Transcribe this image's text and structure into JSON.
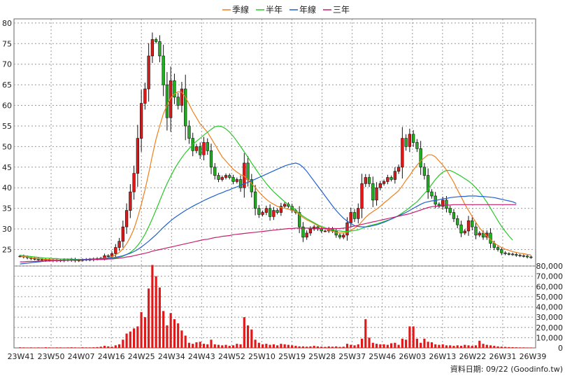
{
  "legend": [
    {
      "label": "季線",
      "color": "#f07f1c"
    },
    {
      "label": "半年",
      "color": "#28c828"
    },
    {
      "label": "年線",
      "color": "#2060d0"
    },
    {
      "label": "三年",
      "color": "#c81e6e"
    }
  ],
  "footer": "資料日期: 09/22  (Goodinfo.tw)",
  "chart_data": [
    {
      "type": "candlestick",
      "panel": "price",
      "ylim": [
        21,
        81
      ],
      "yticks": [
        25,
        30,
        35,
        40,
        45,
        50,
        55,
        60,
        65,
        70,
        75,
        80
      ],
      "xticks": [
        "23W41",
        "23W50",
        "24W07",
        "24W16",
        "24W25",
        "24W34",
        "24W43",
        "24W52",
        "25W10",
        "25W19",
        "25W28",
        "25W37",
        "25W46",
        "26W03",
        "26W13",
        "26W22",
        "26W31",
        "26W39"
      ],
      "grid": true,
      "candles_close": [
        23.4,
        23.2,
        23.0,
        22.8,
        22.7,
        22.5,
        22.6,
        22.4,
        22.5,
        22.3,
        22.4,
        22.3,
        22.5,
        22.4,
        22.6,
        22.3,
        22.4,
        22.5,
        22.6,
        22.5,
        22.7,
        22.8,
        22.9,
        23.5,
        23.3,
        24.0,
        25.5,
        27.0,
        30.5,
        34.5,
        39.0,
        43.5,
        52.0,
        60.5,
        64.0,
        72.0,
        76.0,
        75.5,
        72.0,
        65.0,
        57.0,
        66.0,
        62.0,
        60.0,
        64.0,
        55.0,
        52.0,
        49.0,
        50.0,
        48.0,
        51.0,
        49.0,
        45.0,
        43.0,
        42.0,
        42.5,
        43.0,
        42.5,
        41.5,
        42.0,
        40.0,
        46.0,
        42.0,
        39.0,
        35.0,
        33.5,
        34.0,
        35.0,
        33.0,
        34.5,
        34.0,
        35.5,
        36.0,
        35.5,
        34.5,
        34.0,
        30.5,
        28.0,
        29.0,
        30.0,
        30.5,
        30.0,
        29.5,
        29.5,
        30.0,
        29.5,
        28.5,
        28.0,
        28.5,
        31.5,
        34.0,
        32.5,
        35.0,
        41.0,
        42.5,
        41.0,
        37.0,
        40.0,
        41.0,
        41.5,
        42.5,
        42.0,
        44.0,
        45.0,
        52.0,
        50.0,
        53.0,
        51.0,
        49.5,
        45.0,
        43.0,
        39.0,
        38.0,
        36.0,
        35.5,
        37.0,
        35.0,
        34.0,
        32.5,
        31.0,
        29.0,
        29.5,
        32.0,
        30.5,
        28.5,
        29.0,
        28.0,
        29.0,
        26.5,
        25.5,
        25.0,
        24.2,
        24.0,
        23.9,
        23.8,
        23.6,
        23.5,
        23.4,
        23.2,
        23.1
      ],
      "series": [
        {
          "name": "季線",
          "color": "#f07f1c",
          "values": [
            23.5,
            23.3,
            23.2,
            23.0,
            22.9,
            22.8,
            22.7,
            22.6,
            22.6,
            22.5,
            22.5,
            22.4,
            22.4,
            22.4,
            22.5,
            22.4,
            22.4,
            22.5,
            22.5,
            22.6,
            22.6,
            22.7,
            22.8,
            22.9,
            23.0,
            23.3,
            23.7,
            24.3,
            25.2,
            26.4,
            28.0,
            30.0,
            32.8,
            36.0,
            39.5,
            43.5,
            47.8,
            51.8,
            55.0,
            58.0,
            60.0,
            61.8,
            62.8,
            63.3,
            63.2,
            62.0,
            60.3,
            58.5,
            57.0,
            55.5,
            54.5,
            53.5,
            52.0,
            50.5,
            49.0,
            47.5,
            46.5,
            45.5,
            44.5,
            43.8,
            43.2,
            42.8,
            42.0,
            41.0,
            40.0,
            39.0,
            38.0,
            37.2,
            36.5,
            36.0,
            35.5,
            35.2,
            35.0,
            34.8,
            34.5,
            34.2,
            33.5,
            32.8,
            32.2,
            31.8,
            31.3,
            30.8,
            30.4,
            30.0,
            29.7,
            29.4,
            29.2,
            29.0,
            29.0,
            29.2,
            29.7,
            30.2,
            30.8,
            31.8,
            32.8,
            33.6,
            34.2,
            34.8,
            35.5,
            36.3,
            37.0,
            37.8,
            38.5,
            39.3,
            40.5,
            41.8,
            43.0,
            44.3,
            45.5,
            46.5,
            47.3,
            48.0,
            48.0,
            47.5,
            46.5,
            45.5,
            44.3,
            42.8,
            41.3,
            39.5,
            37.8,
            36.0,
            34.5,
            33.0,
            31.6,
            30.3,
            29.2,
            28.3,
            27.4,
            26.6,
            26.0,
            25.5,
            25.1,
            24.8,
            24.5,
            24.3,
            24.1,
            24.0,
            23.8,
            23.7
          ]
        },
        {
          "name": "半年",
          "color": "#28c828",
          "values": [
            23.6,
            23.5,
            23.4,
            23.3,
            23.2,
            23.1,
            23.0,
            22.9,
            22.9,
            22.8,
            22.8,
            22.7,
            22.7,
            22.7,
            22.7,
            22.6,
            22.6,
            22.6,
            22.6,
            22.6,
            22.6,
            22.6,
            22.6,
            22.7,
            22.7,
            22.8,
            22.9,
            23.1,
            23.4,
            23.8,
            24.3,
            25.0,
            26.0,
            27.2,
            28.7,
            30.5,
            32.5,
            34.6,
            36.8,
            39.0,
            41.0,
            42.8,
            44.5,
            46.0,
            47.3,
            48.5,
            49.5,
            50.5,
            51.3,
            52.0,
            52.8,
            53.5,
            54.2,
            54.8,
            55.0,
            54.8,
            54.3,
            53.5,
            52.5,
            51.3,
            50.0,
            48.7,
            47.4,
            46.0,
            44.7,
            43.4,
            42.2,
            41.0,
            40.0,
            39.0,
            38.2,
            37.4,
            36.6,
            35.9,
            35.2,
            34.5,
            33.8,
            33.1,
            32.5,
            32.0,
            31.5,
            31.0,
            30.6,
            30.3,
            30.0,
            29.8,
            29.6,
            29.5,
            29.4,
            29.4,
            29.5,
            29.6,
            29.8,
            30.1,
            30.5,
            30.8,
            31.0,
            31.2,
            31.5,
            31.8,
            32.1,
            32.4,
            32.8,
            33.3,
            33.9,
            34.5,
            35.2,
            35.9,
            36.6,
            37.6,
            38.6,
            39.6,
            40.8,
            42.0,
            43.0,
            43.8,
            44.2,
            44.2,
            43.8,
            43.3,
            42.8,
            42.2,
            41.6,
            40.9,
            40.0,
            39.0,
            37.8,
            36.5,
            35.0,
            33.5,
            32.0,
            30.6,
            29.4,
            28.3,
            27.3
          ]
        },
        {
          "name": "年線",
          "color": "#2060d0",
          "values": [
            21.5,
            21.6,
            21.7,
            21.8,
            21.9,
            22.0,
            22.1,
            22.2,
            22.2,
            22.3,
            22.3,
            22.4,
            22.4,
            22.4,
            22.5,
            22.5,
            22.5,
            22.6,
            22.6,
            22.7,
            22.7,
            22.7,
            22.8,
            22.8,
            22.9,
            23.0,
            23.1,
            23.3,
            23.5,
            23.8,
            24.1,
            24.5,
            25.0,
            25.6,
            26.3,
            27.0,
            27.8,
            28.6,
            29.5,
            30.4,
            31.2,
            32.0,
            32.7,
            33.3,
            33.9,
            34.5,
            35.0,
            35.5,
            36.0,
            36.4,
            36.9,
            37.3,
            37.7,
            38.1,
            38.5,
            38.8,
            39.2,
            39.5,
            39.9,
            40.2,
            40.6,
            41.0,
            41.3,
            41.7,
            42.1,
            42.5,
            42.9,
            43.3,
            43.7,
            44.1,
            44.5,
            44.9,
            45.3,
            45.6,
            45.8,
            46.0,
            45.7,
            45.0,
            44.0,
            42.8,
            41.6,
            40.4,
            39.2,
            38.0,
            36.8,
            35.6,
            34.5,
            33.5,
            32.6,
            31.9,
            31.3,
            30.8,
            30.6,
            30.5,
            30.5,
            30.6,
            30.8,
            31.0,
            31.3,
            31.6,
            32.0,
            32.4,
            32.8,
            33.2,
            33.6,
            34.0,
            34.5,
            35.0,
            35.5,
            36.0,
            36.4,
            36.6,
            36.8,
            36.9,
            37.1,
            37.3,
            37.4,
            37.6,
            37.7,
            37.8,
            37.9,
            37.9,
            38.0,
            38.0,
            38.0,
            37.9,
            37.9,
            37.8,
            37.7,
            37.6,
            37.4,
            37.2,
            37.0,
            36.8,
            36.6,
            36.2
          ]
        },
        {
          "name": "三年",
          "color": "#c81e6e",
          "values": [
            22.0,
            22.0,
            22.1,
            22.1,
            22.1,
            22.2,
            22.2,
            22.2,
            22.3,
            22.3,
            22.3,
            22.3,
            22.4,
            22.4,
            22.4,
            22.4,
            22.5,
            22.5,
            22.5,
            22.5,
            22.6,
            22.6,
            22.6,
            22.6,
            22.7,
            22.7,
            22.8,
            22.9,
            23.0,
            23.2,
            23.3,
            23.5,
            23.7,
            23.9,
            24.1,
            24.3,
            24.6,
            24.8,
            25.0,
            25.2,
            25.4,
            25.6,
            25.8,
            26.0,
            26.2,
            26.4,
            26.6,
            26.8,
            27.0,
            27.2,
            27.4,
            27.5,
            27.7,
            27.9,
            28.0,
            28.2,
            28.3,
            28.4,
            28.6,
            28.7,
            28.8,
            28.9,
            29.0,
            29.1,
            29.2,
            29.3,
            29.4,
            29.5,
            29.6,
            29.7,
            29.8,
            29.9,
            30.0,
            30.1,
            30.1,
            30.2,
            30.2,
            30.2,
            30.2,
            30.2,
            30.2,
            30.1,
            30.1,
            30.1,
            30.1,
            30.1,
            30.1,
            30.1,
            30.2,
            30.3,
            30.5,
            30.7,
            30.9,
            31.1,
            31.3,
            31.5,
            31.7,
            31.9,
            32.1,
            32.3,
            32.5,
            32.7,
            32.9,
            33.1,
            33.3,
            33.5,
            33.7,
            34.0,
            34.3,
            34.6,
            34.9,
            35.2,
            35.4,
            35.5,
            35.6,
            35.7,
            35.8,
            35.8,
            35.9,
            35.9,
            35.9,
            35.9,
            35.9,
            35.9,
            35.9,
            35.9,
            35.9,
            35.9,
            35.9,
            35.9,
            35.9,
            35.9,
            35.9,
            35.9,
            35.9,
            35.9
          ]
        }
      ]
    },
    {
      "type": "bar",
      "panel": "volume",
      "ylim": [
        0,
        80000
      ],
      "yticks": [
        0,
        10000,
        20000,
        30000,
        40000,
        50000,
        60000,
        70000,
        80000
      ],
      "yticklabels": [
        "0",
        "10,000",
        "20,000",
        "30,000",
        "40,000",
        "50,000",
        "60,000",
        "70,000",
        "80,000"
      ],
      "values": [
        600,
        500,
        400,
        500,
        400,
        500,
        400,
        600,
        500,
        400,
        500,
        500,
        400,
        500,
        600,
        500,
        400,
        600,
        500,
        500,
        600,
        800,
        1200,
        2000,
        1500,
        1200,
        2500,
        3500,
        8000,
        14000,
        16000,
        19000,
        21000,
        35000,
        30000,
        58000,
        81000,
        70000,
        59000,
        36000,
        22000,
        34000,
        28000,
        24000,
        17000,
        12000,
        5000,
        4000,
        5500,
        6000,
        4000,
        3500,
        8000,
        3500,
        3000,
        2500,
        3000,
        2000,
        2500,
        4000,
        3500,
        30000,
        22000,
        18000,
        8000,
        5000,
        3500,
        4000,
        3000,
        3500,
        2500,
        4000,
        3500,
        3000,
        2500,
        2000,
        1500,
        1500,
        1200,
        1500,
        2000,
        1500,
        1200,
        1000,
        1500,
        1200,
        1500,
        1000,
        1200,
        4000,
        3000,
        2500,
        3500,
        9000,
        28000,
        10000,
        5000,
        4000,
        3500,
        3500,
        3000,
        4500,
        5000,
        3000,
        9000,
        8000,
        21000,
        21000,
        9000,
        5000,
        9000,
        6000,
        5500,
        3500,
        3000,
        3500,
        2500,
        2500,
        2000,
        2500,
        2000,
        3000,
        2500,
        2000,
        2500,
        7000,
        4000,
        3000,
        2500,
        2000,
        1500,
        1200,
        1000,
        800,
        700,
        600,
        500,
        500,
        400,
        400
      ]
    }
  ]
}
